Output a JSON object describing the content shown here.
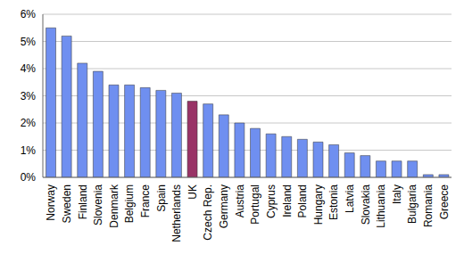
{
  "chart_data": {
    "type": "bar",
    "categories": [
      "Norway",
      "Sweden",
      "Finland",
      "Slovenia",
      "Denmark",
      "Belgium",
      "France",
      "Spain",
      "Netherlands",
      "UK",
      "Czech Rep.",
      "Germany",
      "Austria",
      "Portugal",
      "Cyprus",
      "Ireland",
      "Poland",
      "Hungary",
      "Estonia",
      "Latvia",
      "Slovakia",
      "Lithuania",
      "Italy",
      "Bulgaria",
      "Romania",
      "Greece"
    ],
    "values": [
      5.5,
      5.2,
      4.2,
      3.9,
      3.4,
      3.4,
      3.3,
      3.2,
      3.1,
      2.8,
      2.7,
      2.3,
      2.0,
      1.8,
      1.6,
      1.5,
      1.4,
      1.3,
      1.2,
      0.9,
      0.8,
      0.6,
      0.6,
      0.6,
      0.1,
      0.1
    ],
    "colors": [
      "#6f8ff0",
      "#6f8ff0",
      "#6f8ff0",
      "#6f8ff0",
      "#6f8ff0",
      "#6f8ff0",
      "#6f8ff0",
      "#6f8ff0",
      "#6f8ff0",
      "#993366",
      "#6f8ff0",
      "#6f8ff0",
      "#6f8ff0",
      "#6f8ff0",
      "#6f8ff0",
      "#6f8ff0",
      "#6f8ff0",
      "#6f8ff0",
      "#6f8ff0",
      "#6f8ff0",
      "#6f8ff0",
      "#6f8ff0",
      "#6f8ff0",
      "#6f8ff0",
      "#6f8ff0",
      "#6f8ff0"
    ],
    "ylim": [
      0,
      6
    ],
    "yticks": [
      {
        "value": 0,
        "label": "0%"
      },
      {
        "value": 1,
        "label": "1%"
      },
      {
        "value": 2,
        "label": "2%"
      },
      {
        "value": 3,
        "label": "3%"
      },
      {
        "value": 4,
        "label": "4%"
      },
      {
        "value": 5,
        "label": "5%"
      },
      {
        "value": 6,
        "label": "6%"
      }
    ],
    "grid": true
  }
}
